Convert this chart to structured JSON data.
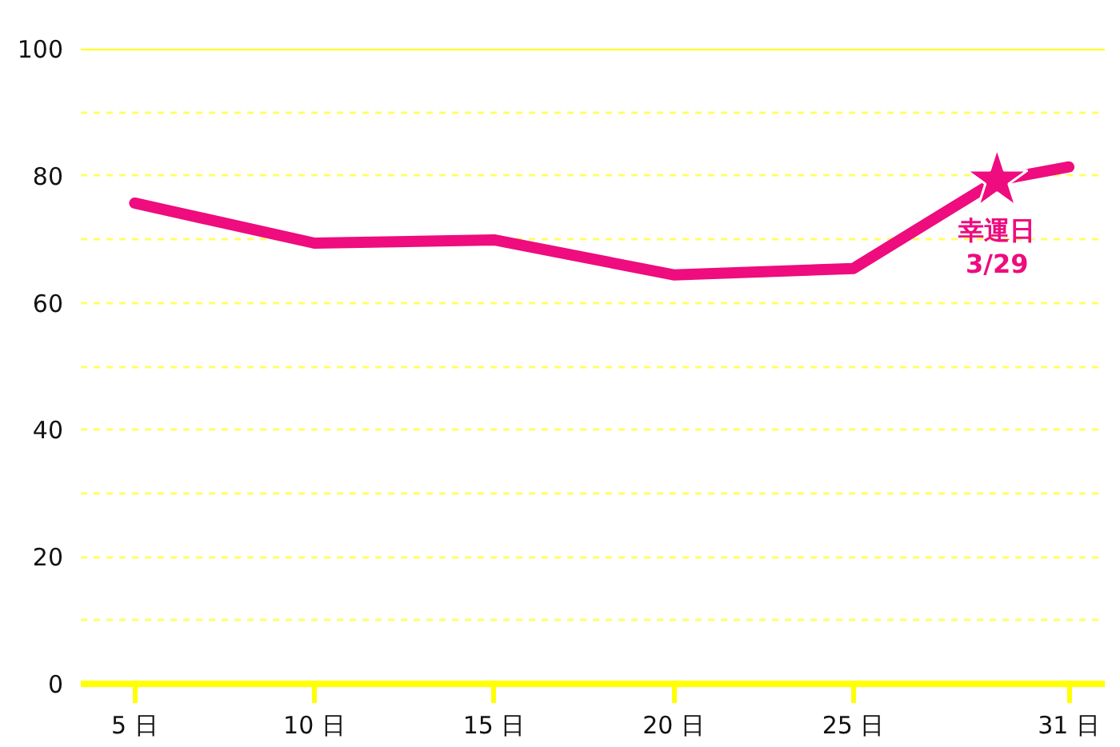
{
  "chart_data": {
    "type": "line",
    "x": [
      5,
      10,
      15,
      20,
      25,
      29,
      31
    ],
    "series": [
      {
        "color": "#ee0c7e",
        "values": [
          75.7,
          69.4,
          69.9,
          64.4,
          65.4,
          79.3,
          81.4
        ]
      },
      {
        "type": "scatter",
        "marker": "star",
        "color": "#ee0c7e",
        "x": [
          29
        ],
        "values": [
          79.3
        ]
      }
    ],
    "xlim": [
      3.5,
      32
    ],
    "xticks": [
      {
        "value": 5,
        "label": "5 日"
      },
      {
        "value": 10,
        "label": "10 日"
      },
      {
        "value": 15,
        "label": "15 日"
      },
      {
        "value": 20,
        "label": "20 日"
      },
      {
        "value": 25,
        "label": "25 日"
      },
      {
        "value": 31,
        "label": "31 日"
      }
    ],
    "ylim": [
      0,
      100
    ],
    "yticks": [
      0,
      {
        "value": 10,
        "label": null
      },
      20,
      {
        "value": 30,
        "label": null
      },
      40,
      {
        "value": 50,
        "label": null
      },
      60,
      {
        "value": 70,
        "label": null
      },
      80,
      {
        "value": 90,
        "label": null
      },
      100
    ],
    "grid": "y",
    "annotations": [
      {
        "text": "幸運日\n3/29",
        "x": 29,
        "y": 79.3
      }
    ]
  }
}
